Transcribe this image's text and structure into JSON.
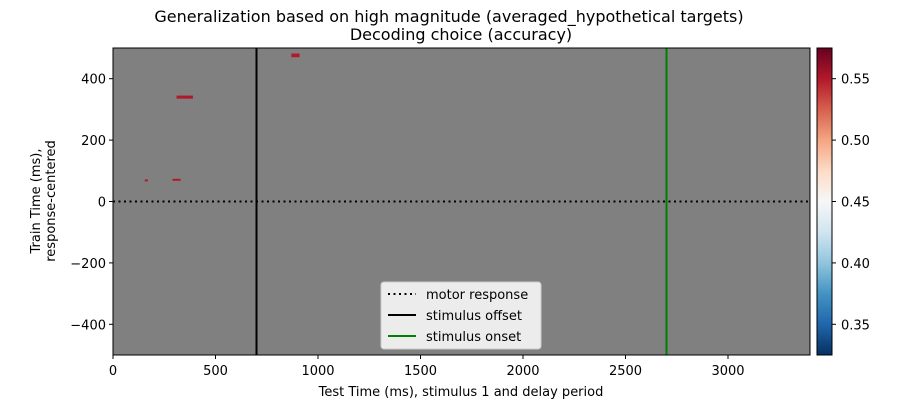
{
  "chart_data": {
    "type": "heatmap",
    "title": "Generalization based on high magnitude (averaged_hypothetical targets)",
    "subtitle": "Decoding choice (accuracy)",
    "xlabel": "Test Time (ms), stimulus 1 and delay period",
    "ylabel_line1": "Train Time (ms),",
    "ylabel_line2": "response-centered",
    "xlim": [
      0,
      3400
    ],
    "ylim": [
      -500,
      500
    ],
    "x_ticks": [
      0,
      500,
      1000,
      1500,
      2000,
      2500,
      3000
    ],
    "y_ticks": [
      -400,
      -200,
      0,
      200,
      400
    ],
    "background_value_color": "#808080",
    "colorbar": {
      "colormap": "RdBu_r",
      "range": [
        0.325,
        0.575
      ],
      "ticks": [
        0.35,
        0.4,
        0.45,
        0.5,
        0.55
      ],
      "tick_labels": [
        "0.35",
        "0.40",
        "0.45",
        "0.50",
        "0.55"
      ]
    },
    "significant_clusters": [
      {
        "x": [
          870,
          910
        ],
        "y": [
          470,
          482
        ],
        "value": 0.56
      },
      {
        "x": [
          310,
          390
        ],
        "y": [
          335,
          345
        ],
        "value": 0.56
      },
      {
        "x": [
          155,
          170
        ],
        "y": [
          66,
          72
        ],
        "value": 0.56
      },
      {
        "x": [
          290,
          330
        ],
        "y": [
          70,
          74
        ],
        "value": 0.56
      }
    ],
    "reference_lines": [
      {
        "label": "motor response",
        "orientation": "horizontal",
        "value": 0,
        "style": "dotted",
        "color": "#000000"
      },
      {
        "label": "stimulus offset",
        "orientation": "vertical",
        "value": 700,
        "style": "solid",
        "color": "#000000"
      },
      {
        "label": "stimulus onset",
        "orientation": "vertical",
        "value": 2700,
        "style": "solid",
        "color": "#008000"
      }
    ],
    "legend_position": "lower center"
  }
}
